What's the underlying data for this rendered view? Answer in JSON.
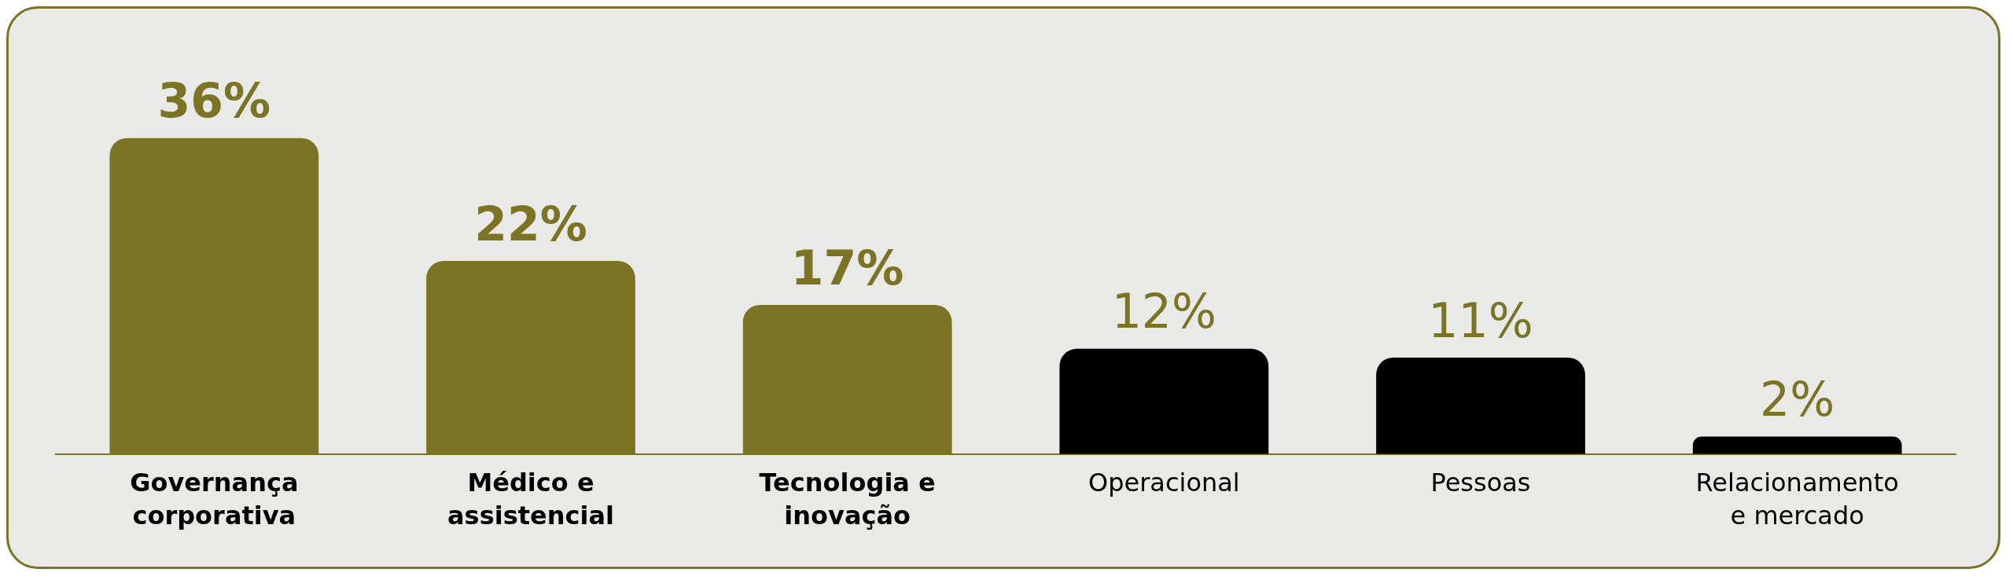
{
  "chart_data": {
    "type": "bar",
    "categories": [
      "Governança corporativa",
      "Médico e assistencial",
      "Tecnologia e inovação",
      "Operacional",
      "Pessoas",
      "Relacionamento e mercado"
    ],
    "values": [
      36,
      22,
      17,
      12,
      11,
      2
    ],
    "colors": [
      "#7a7424",
      "#7a7424",
      "#7a7424",
      "#000000",
      "#000000",
      "#000000"
    ],
    "data_labels": true,
    "value_labels": [
      "36%",
      "22%",
      "17%",
      "12%",
      "11%",
      "2%"
    ],
    "grid": false,
    "legend": false
  }
}
